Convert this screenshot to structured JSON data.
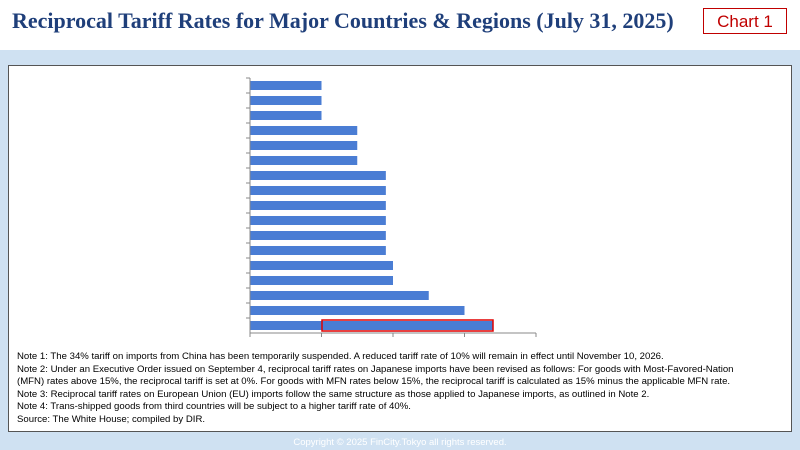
{
  "header": {
    "title": "Reciprocal Tariff Rates for Major Countries & Regions (July 31, 2025)",
    "tag": "Chart 1"
  },
  "chart_data": {
    "type": "barh",
    "categories": [
      null,
      null,
      null,
      null,
      null,
      null,
      null,
      null,
      null,
      null,
      null,
      null,
      null,
      null,
      null,
      null,
      null
    ],
    "values": [
      10,
      10,
      10,
      15,
      15,
      15,
      19,
      19,
      19,
      19,
      19,
      19,
      20,
      20,
      25,
      30,
      34
    ],
    "color": "#4a7dd4",
    "xlim": [
      0,
      40
    ],
    "xticks": [
      0,
      10,
      20,
      30,
      40
    ]
  },
  "notes": [
    "Note 1: The 34% tariff on imports from China has been temporarily suspended. A reduced tariff rate of 10% will remain in effect until November 10, 2026.",
    "Note 2: Under an Executive Order issued on September 4, reciprocal tariff rates on Japanese imports have been revised as follows: For goods with Most-Favored-Nation",
    "(MFN) rates above 15%, the reciprocal tariff is set at 0%. For goods with MFN rates below 15%, the reciprocal tariff is calculated as 15% minus the applicable MFN rate.",
    "Note 3: Reciprocal tariff rates on European Union (EU) imports follow the same structure as those applied to Japanese imports, as outlined in Note 2.",
    "Note 4: Trans-shipped goods from third countries will be subject to a higher tariff rate of 40%.",
    "Source: The White House; compiled by DIR."
  ],
  "footer": "Copyright © 2025 FinCity.Tokyo all rights reserved."
}
